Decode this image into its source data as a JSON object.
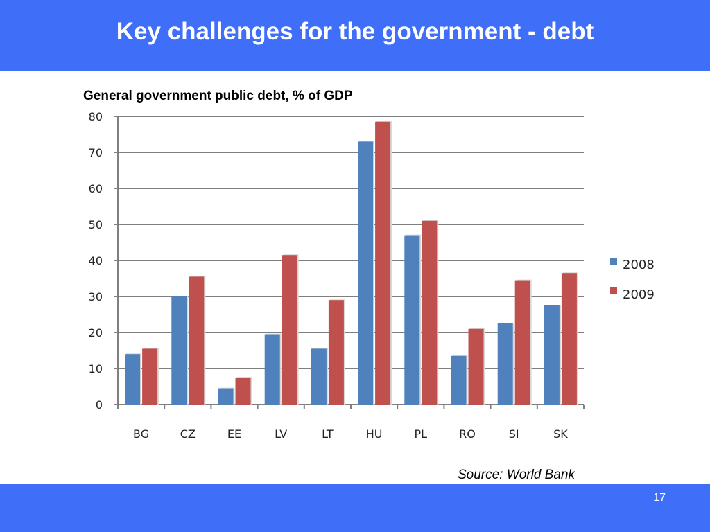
{
  "slide": {
    "title": "Key challenges for the government - debt",
    "source": "Source: World Bank",
    "page_number": "17"
  },
  "colors": {
    "band": "#3f6ff8",
    "series_2008": "#4f81bd",
    "series_2009": "#c0504d",
    "grid": "#7f7f7f"
  },
  "chart_data": {
    "type": "bar",
    "title": "General government public debt, % of GDP",
    "xlabel": "",
    "ylabel": "",
    "categories": [
      "BG",
      "CZ",
      "EE",
      "LV",
      "LT",
      "HU",
      "PL",
      "RO",
      "SI",
      "SK"
    ],
    "series": [
      {
        "name": "2008",
        "color": "#4f81bd",
        "values": [
          14,
          30,
          4.5,
          19.5,
          15.5,
          73,
          47,
          13.5,
          22.5,
          27.5
        ]
      },
      {
        "name": "2009",
        "color": "#c0504d",
        "values": [
          15.5,
          35.5,
          7.5,
          41.5,
          29,
          78.5,
          51,
          21,
          34.5,
          36.5
        ]
      }
    ],
    "ylim": [
      0,
      80
    ],
    "yticks": [
      "0",
      "10",
      "20",
      "30",
      "40",
      "50",
      "60",
      "70",
      "80"
    ],
    "grid": true,
    "legend": "right"
  }
}
